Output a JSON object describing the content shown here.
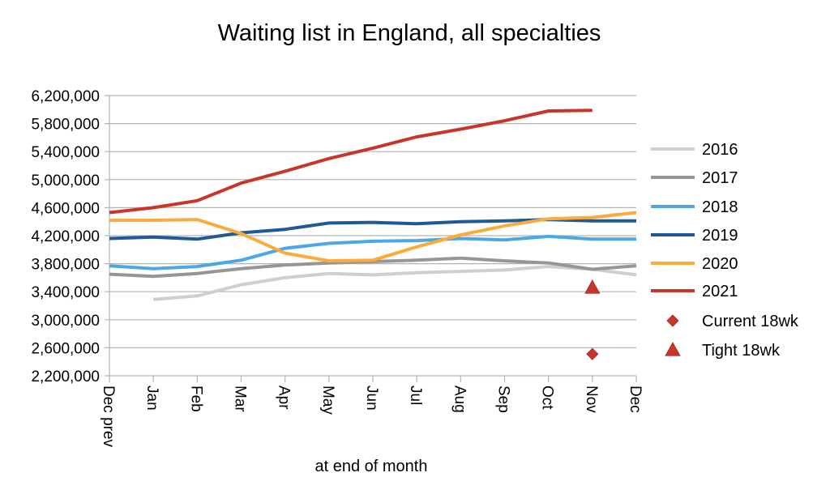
{
  "chart_data": {
    "type": "line",
    "title": "Waiting list in England, all specialties",
    "xlabel": "at end of month",
    "ylabel": "",
    "categories": [
      "Dec prev",
      "Jan",
      "Feb",
      "Mar",
      "Apr",
      "May",
      "Jun",
      "Jul",
      "Aug",
      "Sep",
      "Oct",
      "Nov",
      "Dec"
    ],
    "ylim": [
      2200000,
      6200000
    ],
    "yticks": [
      "2,200,000",
      "2,600,000",
      "3,000,000",
      "3,400,000",
      "3,800,000",
      "4,200,000",
      "4,600,000",
      "5,000,000",
      "5,400,000",
      "5,800,000",
      "6,200,000"
    ],
    "ytick_values": [
      2200000,
      2600000,
      3000000,
      3400000,
      3800000,
      4200000,
      4600000,
      5000000,
      5400000,
      5800000,
      6200000
    ],
    "grid": true,
    "legend_position": "right",
    "series": [
      {
        "name": "2016",
        "color": "#cfcfcf",
        "values": [
          null,
          3290000,
          3340000,
          3500000,
          3600000,
          3660000,
          3640000,
          3670000,
          3690000,
          3710000,
          3760000,
          3720000,
          3640000
        ]
      },
      {
        "name": "2017",
        "color": "#969696",
        "values": [
          3650000,
          3620000,
          3660000,
          3730000,
          3780000,
          3810000,
          3830000,
          3850000,
          3880000,
          3840000,
          3810000,
          3720000,
          3770000
        ]
      },
      {
        "name": "2018",
        "color": "#4ea6e4",
        "values": [
          3770000,
          3730000,
          3760000,
          3850000,
          4020000,
          4090000,
          4120000,
          4130000,
          4160000,
          4140000,
          4190000,
          4150000,
          4150000
        ]
      },
      {
        "name": "2019",
        "color": "#1f5a96",
        "values": [
          4160000,
          4180000,
          4150000,
          4240000,
          4290000,
          4380000,
          4390000,
          4370000,
          4400000,
          4410000,
          4430000,
          4410000,
          4410000
        ]
      },
      {
        "name": "2020",
        "color": "#fbab3b",
        "values": [
          4420000,
          4420000,
          4430000,
          4230000,
          3950000,
          3840000,
          3850000,
          4040000,
          4210000,
          4340000,
          4440000,
          4460000,
          4530000
        ]
      },
      {
        "name": "2021",
        "color": "#c9352a",
        "values": [
          4530000,
          4600000,
          4700000,
          4950000,
          5120000,
          5300000,
          5450000,
          5610000,
          5720000,
          5840000,
          5980000,
          5990000,
          null
        ]
      }
    ],
    "markers": [
      {
        "name": "Current 18wk",
        "shape": "diamond",
        "color": "#c9352a",
        "category": "Nov",
        "value": 2510000
      },
      {
        "name": "Tight 18wk",
        "shape": "triangle",
        "color": "#c9352a",
        "category": "Nov",
        "value": 3460000
      }
    ]
  }
}
